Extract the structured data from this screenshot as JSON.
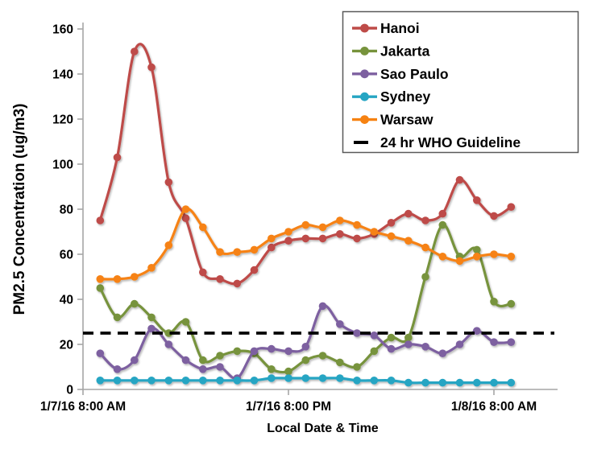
{
  "chart_data": {
    "type": "line",
    "title": "",
    "grid": false,
    "x": {
      "title": "Local Date & Time",
      "ticks": [
        {
          "label": "1/7/16 8:00 AM",
          "hour": 0
        },
        {
          "label": "1/7/16 8:00 PM",
          "hour": 12
        },
        {
          "label": "1/8/16 8:00 AM",
          "hour": 24
        }
      ],
      "first_point_hour": 1,
      "point_interval_hours": 1,
      "hours_visible": 27.6
    },
    "y": {
      "title": "PM2.5 Concentration (ug/m3)",
      "min": 0,
      "max": 160,
      "step": 20,
      "tick_labels": [
        "0",
        "20",
        "40",
        "60",
        "80",
        "100",
        "120",
        "140",
        "160"
      ]
    },
    "series": [
      {
        "name": "Hanoi",
        "color": "#BE4B48",
        "values": [
          75,
          103,
          150,
          143,
          92,
          76,
          52,
          49,
          47,
          53,
          63,
          66,
          67,
          67,
          69,
          67,
          69,
          74,
          78,
          75,
          78,
          93,
          84,
          77,
          81
        ]
      },
      {
        "name": "Jakarta",
        "color": "#77933C",
        "values": [
          45,
          32,
          38,
          32,
          25,
          30,
          13,
          15,
          17,
          16,
          9,
          8,
          13,
          15,
          12,
          10,
          17,
          23,
          23,
          50,
          73,
          59,
          62,
          39,
          38
        ]
      },
      {
        "name": "Sao Paulo",
        "color": "#7D60A0",
        "values": [
          16,
          9,
          13,
          27,
          20,
          13,
          9,
          10,
          5,
          17,
          18,
          17,
          19,
          37,
          29,
          25,
          24,
          18,
          20,
          19,
          16,
          20,
          26,
          21,
          21
        ]
      },
      {
        "name": "Sydney",
        "color": "#25A5C3",
        "values": [
          4,
          4,
          4,
          4,
          4,
          4,
          4,
          4,
          4,
          4,
          5,
          5,
          5,
          5,
          5,
          4,
          4,
          4,
          3,
          3,
          3,
          3,
          3,
          3,
          3
        ]
      },
      {
        "name": "Warsaw",
        "color": "#F68212",
        "values": [
          49,
          49,
          50,
          54,
          64,
          80,
          72,
          61,
          61,
          62,
          67,
          70,
          73,
          72,
          75,
          73,
          70,
          68,
          66,
          63,
          59,
          57,
          59,
          60,
          59
        ]
      }
    ],
    "guideline": {
      "label": "24 hr WHO Guideline",
      "value": 25,
      "color": "#000000"
    },
    "legend": {
      "position": "top-right",
      "border_color": "#595959",
      "background": "#ffffff"
    },
    "axis_color": "#A6A6A6"
  }
}
